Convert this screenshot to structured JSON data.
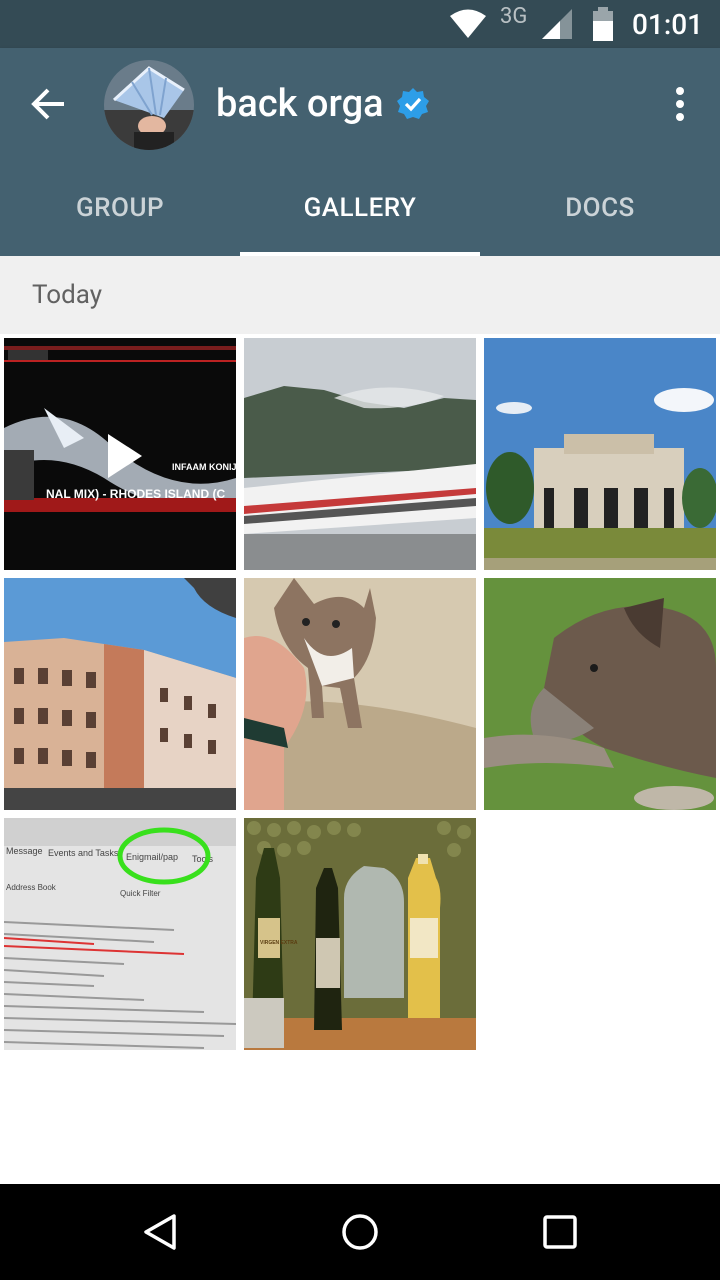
{
  "status_bar": {
    "network": "3G",
    "time": "01:01",
    "icons": [
      "wifi-icon",
      "signal-icon",
      "battery-icon"
    ]
  },
  "app_bar": {
    "title": "back orga",
    "verified": true,
    "icons": [
      "back-arrow-icon",
      "verified-badge-icon",
      "overflow-menu-icon"
    ],
    "tabs": [
      {
        "label": "GROUP",
        "active": false
      },
      {
        "label": "GALLERY",
        "active": true
      },
      {
        "label": "DOCS",
        "active": false
      }
    ]
  },
  "gallery": {
    "section_label": "Today",
    "items": [
      {
        "kind": "video",
        "subject": "music video screenshot",
        "overlay_text_1": "INFAAM KONIJN",
        "overlay_text_2": "NAL MIX) - RHODES ISLAND (C"
      },
      {
        "kind": "photo",
        "subject": "train with mountains"
      },
      {
        "kind": "photo",
        "subject": "train station building"
      },
      {
        "kind": "photo",
        "subject": "apartment buildings"
      },
      {
        "kind": "photo",
        "subject": "kitten being petted"
      },
      {
        "kind": "photo",
        "subject": "dog lying in grass"
      },
      {
        "kind": "photo",
        "subject": "monitor with email client",
        "menu_1": "Message",
        "menu_2": "Events and Tasks",
        "menu_3": "Enigmail/pap",
        "menu_4": "Tools",
        "toolbar": "Address Book",
        "filter": "Quick Filter"
      },
      {
        "kind": "photo",
        "subject": "bottles on kitchen counter",
        "label": "VIRGEN EXTRA"
      }
    ]
  },
  "nav_bar": {
    "icons": [
      "nav-back-icon",
      "nav-home-icon",
      "nav-recents-icon"
    ]
  },
  "colors": {
    "status_bar": "#344b55",
    "app_bar": "#446170",
    "section_bg": "#f0f0f0",
    "verified": "#2d9ee8"
  }
}
